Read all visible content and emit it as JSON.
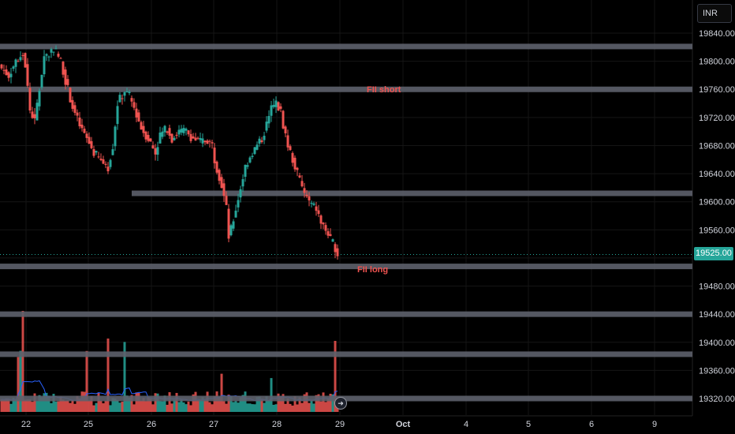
{
  "currency_button": "INR",
  "last_price_label": "19525.00",
  "chart_data": {
    "type": "candlestick",
    "currency": "INR",
    "ylim": [
      19300,
      19870
    ],
    "y_ticks": [
      "19840.00",
      "19800.00",
      "19760.00",
      "19720.00",
      "19680.00",
      "19640.00",
      "19600.00",
      "19560.00",
      "19520.00",
      "19480.00",
      "19440.00",
      "19400.00",
      "19360.00",
      "19320.00"
    ],
    "y_tick_values": [
      19840,
      19800,
      19760,
      19720,
      19680,
      19640,
      19600,
      19560,
      19520,
      19480,
      19440,
      19400,
      19360,
      19320
    ],
    "x_labels": [
      "22",
      "25",
      "26",
      "27",
      "28",
      "29",
      "Oct",
      "4",
      "5",
      "6",
      "9"
    ],
    "last_price": 19525,
    "colors": {
      "up": "#26a69a",
      "down": "#ef5350",
      "zone": "#5d606b",
      "volume_ma": "#2962ff"
    },
    "zones": [
      {
        "price": 19821,
        "from_label_index": 0,
        "label": ""
      },
      {
        "price": 19760,
        "from_label_index": 0,
        "label": "FII short"
      },
      {
        "price": 19612,
        "from_label_index": 1,
        "label": ""
      },
      {
        "price": 19508,
        "from_label_index": 0,
        "label": "FII long"
      },
      {
        "price": 19440,
        "from_label_index": 0,
        "label": ""
      },
      {
        "price": 19383,
        "from_label_index": 0,
        "label": ""
      },
      {
        "price": 19320,
        "from_label_index": 0,
        "label": ""
      }
    ],
    "candle_path": [
      [
        0,
        19790
      ],
      [
        3,
        19780
      ],
      [
        6,
        19800
      ],
      [
        9,
        19812
      ],
      [
        10,
        19795
      ],
      [
        12,
        19730
      ],
      [
        14,
        19715
      ],
      [
        16,
        19760
      ],
      [
        18,
        19808
      ],
      [
        20,
        19810
      ],
      [
        22,
        19820
      ],
      [
        25,
        19800
      ],
      [
        28,
        19760
      ],
      [
        30,
        19735
      ],
      [
        33,
        19708
      ],
      [
        36,
        19690
      ],
      [
        39,
        19670
      ],
      [
        42,
        19658
      ],
      [
        45,
        19650
      ],
      [
        47,
        19680
      ],
      [
        49,
        19740
      ],
      [
        52,
        19758
      ],
      [
        54,
        19750
      ],
      [
        57,
        19725
      ],
      [
        59,
        19705
      ],
      [
        62,
        19690
      ],
      [
        65,
        19670
      ],
      [
        67,
        19695
      ],
      [
        70,
        19705
      ],
      [
        72,
        19690
      ],
      [
        75,
        19700
      ],
      [
        78,
        19700
      ],
      [
        81,
        19690
      ],
      [
        84,
        19685
      ],
      [
        87,
        19688
      ],
      [
        89,
        19680
      ],
      [
        90,
        19660
      ],
      [
        93,
        19625
      ],
      [
        95,
        19590
      ],
      [
        96,
        19550
      ],
      [
        97,
        19560
      ],
      [
        99,
        19590
      ],
      [
        101,
        19620
      ],
      [
        103,
        19650
      ],
      [
        105,
        19665
      ],
      [
        107,
        19675
      ],
      [
        110,
        19690
      ],
      [
        112,
        19710
      ],
      [
        114,
        19732
      ],
      [
        116,
        19740
      ],
      [
        118,
        19728
      ],
      [
        119,
        19710
      ],
      [
        121,
        19680
      ],
      [
        123,
        19660
      ],
      [
        125,
        19640
      ],
      [
        127,
        19620
      ],
      [
        129,
        19605
      ],
      [
        131,
        19595
      ],
      [
        133,
        19590
      ],
      [
        135,
        19570
      ],
      [
        137,
        19560
      ],
      [
        139,
        19545
      ],
      [
        141,
        19535
      ],
      [
        142,
        19525
      ]
    ]
  }
}
